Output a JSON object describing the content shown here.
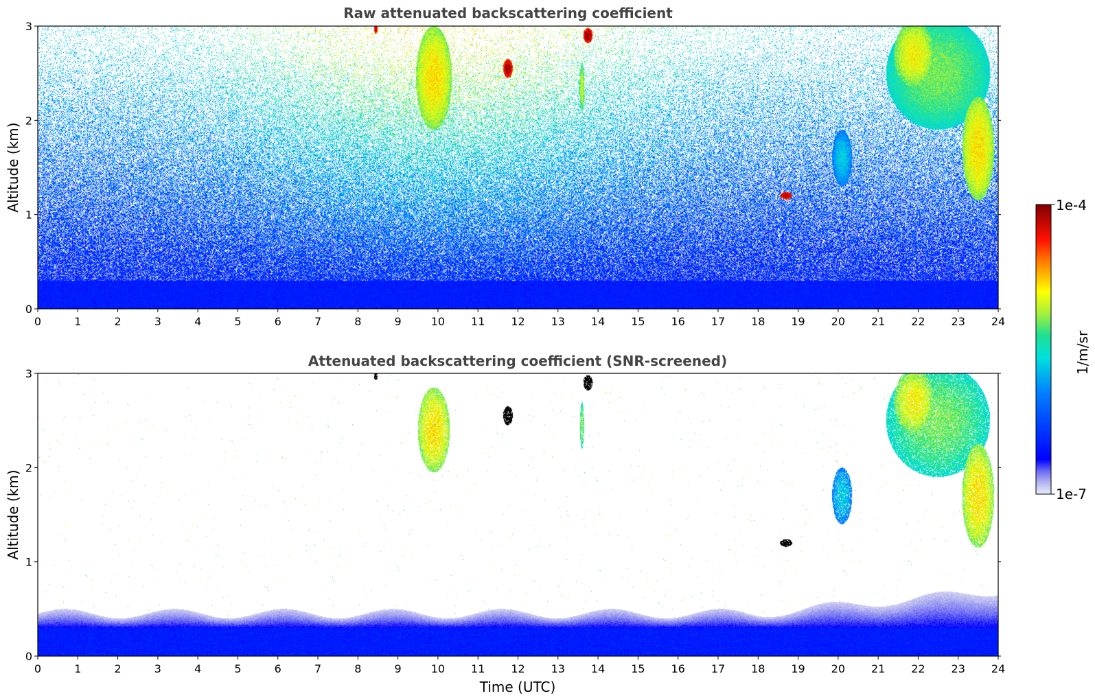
{
  "chart_data": [
    {
      "type": "heatmap",
      "title": "Raw attenuated backscattering coefficient",
      "xlabel": "",
      "ylabel": "Altitude (km)",
      "xlim": [
        0,
        24
      ],
      "ylim": [
        0,
        3
      ],
      "xticks": [
        0,
        1,
        2,
        3,
        4,
        5,
        6,
        7,
        8,
        9,
        10,
        11,
        12,
        13,
        14,
        15,
        16,
        17,
        18,
        19,
        20,
        21,
        22,
        23,
        24
      ],
      "yticks": [
        0,
        1,
        2,
        3
      ],
      "colorscale": "jet",
      "log_scale": true,
      "noise": "high",
      "features": [
        {
          "kind": "blob",
          "t": 9.9,
          "z": 2.45,
          "dt": 0.45,
          "dz": 0.55,
          "v": 0.72
        },
        {
          "kind": "blob",
          "t": 11.75,
          "z": 2.55,
          "dt": 0.12,
          "dz": 0.1,
          "v": 0.97
        },
        {
          "kind": "blob",
          "t": 13.75,
          "z": 2.9,
          "dt": 0.12,
          "dz": 0.08,
          "v": 0.98
        },
        {
          "kind": "blob",
          "t": 8.45,
          "z": 2.97,
          "dt": 0.05,
          "dz": 0.05,
          "v": 0.95
        },
        {
          "kind": "blob",
          "t": 13.6,
          "z": 2.35,
          "dt": 0.06,
          "dz": 0.25,
          "v": 0.66
        },
        {
          "kind": "blob",
          "t": 18.7,
          "z": 1.2,
          "dt": 0.15,
          "dz": 0.04,
          "v": 0.96
        },
        {
          "kind": "blob",
          "t": 20.1,
          "z": 1.6,
          "dt": 0.25,
          "dz": 0.3,
          "v": 0.45
        },
        {
          "kind": "blob",
          "t": 22.5,
          "z": 2.5,
          "dt": 1.3,
          "dz": 0.6,
          "v": 0.6
        },
        {
          "kind": "blob",
          "t": 23.5,
          "z": 1.7,
          "dt": 0.4,
          "dz": 0.55,
          "v": 0.72
        },
        {
          "kind": "blob",
          "t": 21.9,
          "z": 2.7,
          "dt": 0.5,
          "dz": 0.35,
          "v": 0.7
        }
      ]
    },
    {
      "type": "heatmap",
      "title": "Attenuated backscattering coefficient (SNR-screened)",
      "xlabel": "Time (UTC)",
      "ylabel": "Altitude (km)",
      "xlim": [
        0,
        24
      ],
      "ylim": [
        0,
        3
      ],
      "xticks": [
        0,
        1,
        2,
        3,
        4,
        5,
        6,
        7,
        8,
        9,
        10,
        11,
        12,
        13,
        14,
        15,
        16,
        17,
        18,
        19,
        20,
        21,
        22,
        23,
        24
      ],
      "yticks": [
        0,
        1,
        2,
        3
      ],
      "colorscale": "jet",
      "log_scale": true,
      "noise": "screened",
      "features": [
        {
          "kind": "blob",
          "t": 9.9,
          "z": 2.4,
          "dt": 0.4,
          "dz": 0.45,
          "v": 0.72
        },
        {
          "kind": "black",
          "t": 11.75,
          "z": 2.55,
          "dt": 0.12,
          "dz": 0.1
        },
        {
          "kind": "black",
          "t": 13.75,
          "z": 2.9,
          "dt": 0.12,
          "dz": 0.08
        },
        {
          "kind": "black",
          "t": 8.45,
          "z": 2.97,
          "dt": 0.05,
          "dz": 0.04
        },
        {
          "kind": "blob",
          "t": 13.6,
          "z": 2.45,
          "dt": 0.05,
          "dz": 0.25,
          "v": 0.62
        },
        {
          "kind": "black",
          "t": 18.7,
          "z": 1.2,
          "dt": 0.15,
          "dz": 0.04
        },
        {
          "kind": "blob",
          "t": 20.1,
          "z": 1.7,
          "dt": 0.25,
          "dz": 0.3,
          "v": 0.45
        },
        {
          "kind": "blob",
          "t": 22.5,
          "z": 2.5,
          "dt": 1.3,
          "dz": 0.6,
          "v": 0.6
        },
        {
          "kind": "blob",
          "t": 23.5,
          "z": 1.7,
          "dt": 0.4,
          "dz": 0.55,
          "v": 0.72
        },
        {
          "kind": "blob",
          "t": 21.9,
          "z": 2.7,
          "dt": 0.5,
          "dz": 0.35,
          "v": 0.7
        }
      ]
    }
  ],
  "colorbar": {
    "label": "1/m/sr",
    "max_label": "1e-4",
    "min_label": "1e-7",
    "range": [
      1e-07,
      0.0001
    ],
    "log_scale": true
  }
}
